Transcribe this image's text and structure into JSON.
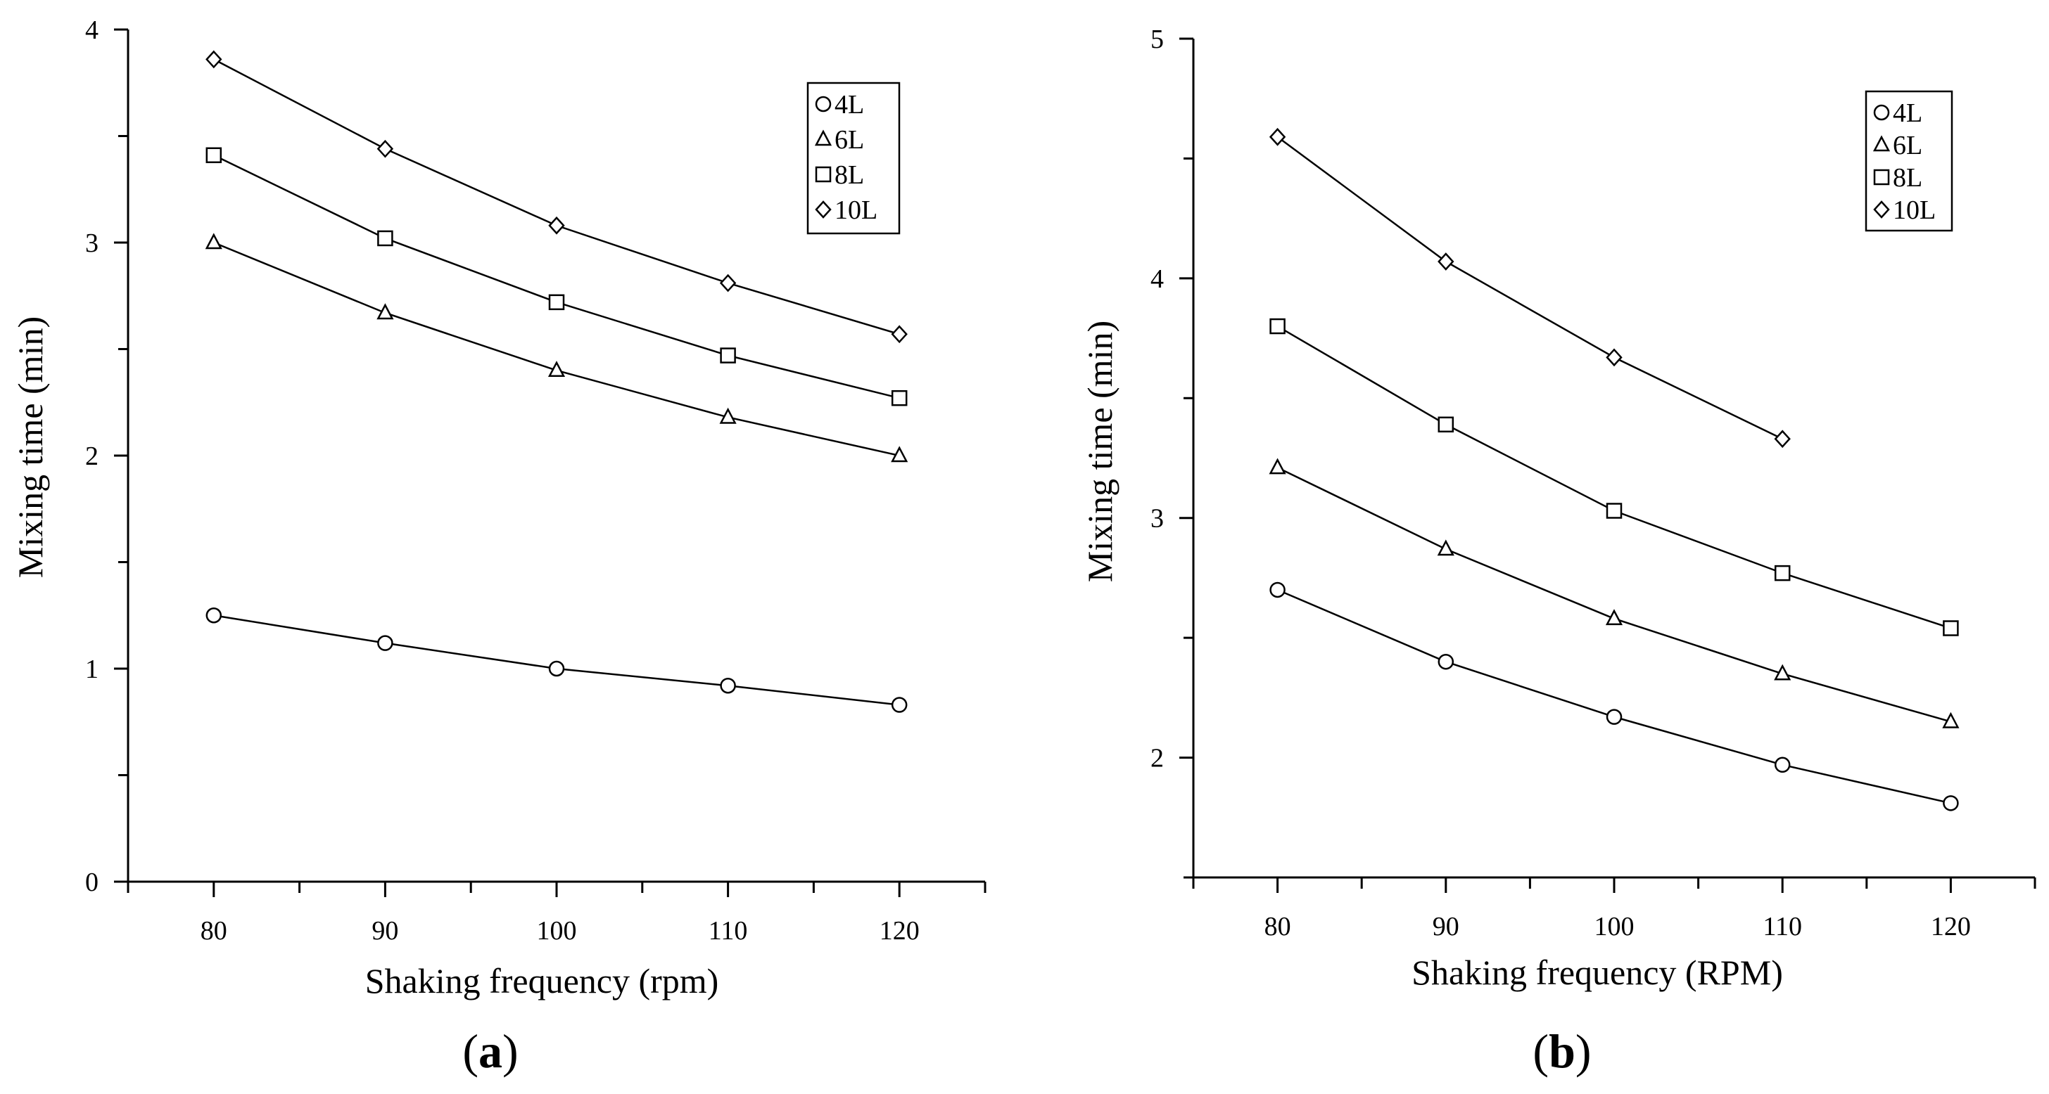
{
  "chart_data": [
    {
      "type": "line",
      "panel_label": "(a)",
      "panel_letter": "a",
      "xlabel": "Shaking frequency (rpm)",
      "ylabel": "Mixing time (min)",
      "xlim": [
        75,
        125
      ],
      "ylim": [
        0,
        4
      ],
      "x_ticks": [
        80,
        90,
        100,
        110,
        120
      ],
      "y_ticks": [
        0,
        1,
        2,
        3,
        4
      ],
      "legend_position": "top-right",
      "series": [
        {
          "name": "4L",
          "marker": "circle",
          "x": [
            80,
            90,
            100,
            110,
            120
          ],
          "values": [
            1.25,
            1.12,
            1.0,
            0.92,
            0.83
          ]
        },
        {
          "name": "6L",
          "marker": "triangle",
          "x": [
            80,
            90,
            100,
            110,
            120
          ],
          "values": [
            3.0,
            2.67,
            2.4,
            2.18,
            2.0
          ]
        },
        {
          "name": "8L",
          "marker": "square",
          "x": [
            80,
            90,
            100,
            110,
            120
          ],
          "values": [
            3.41,
            3.02,
            2.72,
            2.47,
            2.27
          ]
        },
        {
          "name": "10L",
          "marker": "diamond",
          "x": [
            80,
            90,
            100,
            110,
            120
          ],
          "values": [
            3.86,
            3.44,
            3.08,
            2.81,
            2.57
          ]
        }
      ]
    },
    {
      "type": "line",
      "panel_label": "(b)",
      "panel_letter": "b",
      "xlabel": "Shaking frequency (RPM)",
      "ylabel": "Mixing time (min)",
      "xlim": [
        75,
        125
      ],
      "ylim": [
        1.5,
        5
      ],
      "x_ticks": [
        80,
        90,
        100,
        110,
        120
      ],
      "y_ticks": [
        2,
        3,
        4,
        5
      ],
      "legend_position": "top-right",
      "series": [
        {
          "name": "4L",
          "marker": "circle",
          "x": [
            80,
            90,
            100,
            110,
            120
          ],
          "values": [
            2.7,
            2.4,
            2.17,
            1.97,
            1.81
          ]
        },
        {
          "name": "6L",
          "marker": "triangle",
          "x": [
            80,
            90,
            100,
            110,
            120
          ],
          "values": [
            3.21,
            2.87,
            2.58,
            2.35,
            2.15
          ]
        },
        {
          "name": "8L",
          "marker": "square",
          "x": [
            80,
            90,
            100,
            110,
            120
          ],
          "values": [
            3.8,
            3.39,
            3.03,
            2.77,
            2.54
          ]
        },
        {
          "name": "10L",
          "marker": "diamond",
          "x": [
            80,
            90,
            100,
            110
          ],
          "values": [
            4.59,
            4.07,
            3.67,
            3.33
          ]
        }
      ]
    }
  ]
}
